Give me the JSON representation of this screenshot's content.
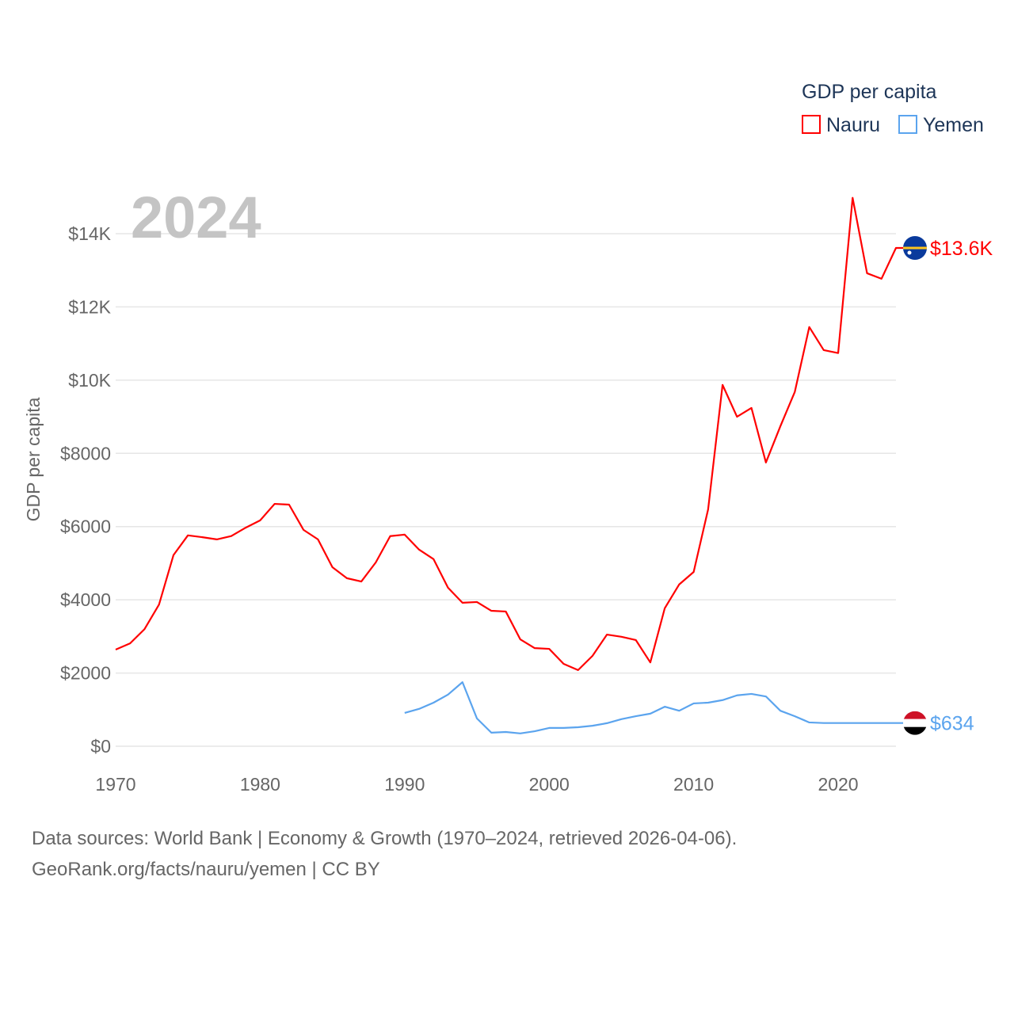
{
  "chart_data": {
    "type": "line",
    "title": "GDP per capita",
    "ylabel": "GDP per capita",
    "xlabel": "",
    "year_label": "2024",
    "xlim": [
      1970,
      2024
    ],
    "ylim": [
      0,
      14000
    ],
    "x_ticks": [
      1970,
      1980,
      1990,
      2000,
      2010,
      2020
    ],
    "y_ticks": [
      {
        "v": 0,
        "label": "$0"
      },
      {
        "v": 2000,
        "label": "$2000"
      },
      {
        "v": 4000,
        "label": "$4000"
      },
      {
        "v": 6000,
        "label": "$6000"
      },
      {
        "v": 8000,
        "label": "$8000"
      },
      {
        "v": 10000,
        "label": "$10K"
      },
      {
        "v": 12000,
        "label": "$12K"
      },
      {
        "v": 14000,
        "label": "$14K"
      }
    ],
    "grid": true,
    "legend_placement": "top-right",
    "series": [
      {
        "name": "Nauru",
        "color": "#ff0000",
        "end_label": "$13.6K",
        "flag": "nauru-flag",
        "x": [
          1970,
          1971,
          1972,
          1973,
          1974,
          1975,
          1976,
          1977,
          1978,
          1979,
          1980,
          1981,
          1982,
          1983,
          1984,
          1985,
          1986,
          1987,
          1988,
          1989,
          1990,
          1991,
          1992,
          1993,
          1994,
          1995,
          1996,
          1997,
          1998,
          1999,
          2000,
          2001,
          2002,
          2003,
          2004,
          2005,
          2006,
          2007,
          2008,
          2009,
          2010,
          2011,
          2012,
          2013,
          2014,
          2015,
          2016,
          2017,
          2018,
          2019,
          2020,
          2021,
          2022,
          2023,
          2024
        ],
        "values": [
          2640,
          2810,
          3200,
          3870,
          5220,
          5760,
          5710,
          5650,
          5740,
          5970,
          6170,
          6620,
          6600,
          5910,
          5650,
          4890,
          4590,
          4500,
          5020,
          5740,
          5780,
          5370,
          5110,
          4330,
          3920,
          3940,
          3700,
          3680,
          2920,
          2680,
          2660,
          2250,
          2080,
          2470,
          3050,
          2990,
          2900,
          2290,
          3770,
          4420,
          4760,
          6470,
          9870,
          9000,
          9240,
          7750,
          8740,
          9680,
          11450,
          10820,
          10740,
          14980,
          12920,
          12770,
          13610
        ]
      },
      {
        "name": "Yemen",
        "color": "#5ba4ee",
        "end_label": "$634",
        "flag": "yemen-flag",
        "x": [
          1990,
          1991,
          1992,
          1993,
          1994,
          1995,
          1996,
          1997,
          1998,
          1999,
          2000,
          2001,
          2002,
          2003,
          2004,
          2005,
          2006,
          2007,
          2008,
          2009,
          2010,
          2011,
          2012,
          2013,
          2014,
          2015,
          2016,
          2017,
          2018,
          2019,
          2020,
          2021,
          2022,
          2023,
          2024
        ],
        "values": [
          910,
          1020,
          1190,
          1410,
          1750,
          760,
          370,
          390,
          350,
          410,
          500,
          500,
          520,
          560,
          630,
          740,
          820,
          890,
          1080,
          970,
          1170,
          1190,
          1260,
          1390,
          1430,
          1360,
          970,
          820,
          650,
          634,
          634,
          634,
          634,
          634,
          634
        ]
      }
    ]
  },
  "footer": {
    "line1": "Data sources: World Bank | Economy & Growth (1970–2024, retrieved 2026-04-06).",
    "line2": "GeoRank.org/facts/nauru/yemen | CC BY"
  }
}
